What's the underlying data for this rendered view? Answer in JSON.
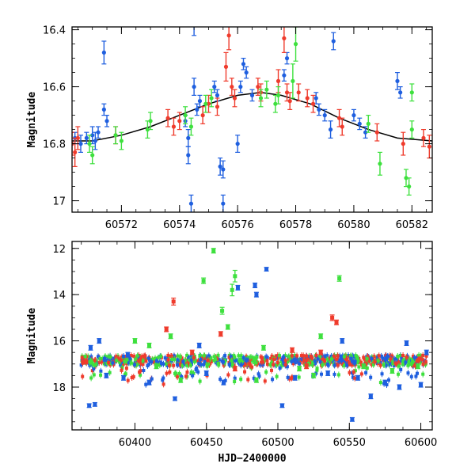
{
  "chart_data": [
    {
      "type": "scatter",
      "title": "",
      "xlabel": "",
      "ylabel": "Magnitude",
      "xlim": [
        60570.3,
        60582.7
      ],
      "ylim": [
        17.04,
        16.39
      ],
      "y_inverted": true,
      "grid": false,
      "legend": "none",
      "xticks": [
        60572,
        60574,
        60576,
        60578,
        60580,
        60582
      ],
      "yticks": [
        16.4,
        16.6,
        16.8,
        17
      ],
      "ytick_labels": [
        "16.4",
        "16.6",
        "16.8",
        "17"
      ],
      "model_curve": {
        "name": "",
        "color": "#000000",
        "x": [
          60570.3,
          60571.0,
          60572.0,
          60573.0,
          60574.0,
          60575.0,
          60576.0,
          60576.8,
          60577.5,
          60578.5,
          60579.5,
          60580.5,
          60581.5,
          60582.7
        ],
        "y": [
          16.79,
          16.79,
          16.77,
          16.74,
          16.7,
          16.66,
          16.63,
          16.62,
          16.63,
          16.66,
          16.71,
          16.75,
          16.78,
          16.79
        ]
      },
      "series": [
        {
          "name": "",
          "color": "#1f5fdf",
          "points": [
            {
              "x": 60570.4,
              "y": 16.78,
              "e": 0.02
            },
            {
              "x": 60570.6,
              "y": 16.8,
              "e": 0.03
            },
            {
              "x": 60570.8,
              "y": 16.78,
              "e": 0.02
            },
            {
              "x": 60571.0,
              "y": 16.77,
              "e": 0.03
            },
            {
              "x": 60571.1,
              "y": 16.79,
              "e": 0.03
            },
            {
              "x": 60571.2,
              "y": 16.76,
              "e": 0.02
            },
            {
              "x": 60571.4,
              "y": 16.68,
              "e": 0.02
            },
            {
              "x": 60571.4,
              "y": 16.48,
              "e": 0.04
            },
            {
              "x": 60571.5,
              "y": 16.72,
              "e": 0.02
            },
            {
              "x": 60574.2,
              "y": 16.72,
              "e": 0.02
            },
            {
              "x": 60574.3,
              "y": 16.78,
              "e": 0.03
            },
            {
              "x": 60574.3,
              "y": 16.84,
              "e": 0.03
            },
            {
              "x": 60574.4,
              "y": 17.01,
              "e": 0.03
            },
            {
              "x": 60574.5,
              "y": 16.38,
              "e": 0.04
            },
            {
              "x": 60574.5,
              "y": 16.6,
              "e": 0.03
            },
            {
              "x": 60574.6,
              "y": 16.68,
              "e": 0.02
            },
            {
              "x": 60574.7,
              "y": 16.65,
              "e": 0.02
            },
            {
              "x": 60575.2,
              "y": 16.6,
              "e": 0.02
            },
            {
              "x": 60575.3,
              "y": 16.63,
              "e": 0.02
            },
            {
              "x": 60575.4,
              "y": 16.88,
              "e": 0.03
            },
            {
              "x": 60575.5,
              "y": 16.89,
              "e": 0.03
            },
            {
              "x": 60575.5,
              "y": 17.01,
              "e": 0.03
            },
            {
              "x": 60576.0,
              "y": 16.8,
              "e": 0.03
            },
            {
              "x": 60576.1,
              "y": 16.6,
              "e": 0.02
            },
            {
              "x": 60576.2,
              "y": 16.52,
              "e": 0.02
            },
            {
              "x": 60576.3,
              "y": 16.55,
              "e": 0.02
            },
            {
              "x": 60576.5,
              "y": 16.63,
              "e": 0.02
            },
            {
              "x": 60577.6,
              "y": 16.56,
              "e": 0.02
            },
            {
              "x": 60577.7,
              "y": 16.5,
              "e": 0.02
            },
            {
              "x": 60578.7,
              "y": 16.64,
              "e": 0.02
            },
            {
              "x": 60578.8,
              "y": 16.68,
              "e": 0.02
            },
            {
              "x": 60579.0,
              "y": 16.7,
              "e": 0.02
            },
            {
              "x": 60579.2,
              "y": 16.75,
              "e": 0.03
            },
            {
              "x": 60579.3,
              "y": 16.44,
              "e": 0.03
            },
            {
              "x": 60580.0,
              "y": 16.7,
              "e": 0.02
            },
            {
              "x": 60580.2,
              "y": 16.73,
              "e": 0.02
            },
            {
              "x": 60580.4,
              "y": 16.76,
              "e": 0.02
            },
            {
              "x": 60581.5,
              "y": 16.58,
              "e": 0.03
            },
            {
              "x": 60581.6,
              "y": 16.62,
              "e": 0.02
            }
          ]
        },
        {
          "name": "",
          "color": "#ef3b2c",
          "points": [
            {
              "x": 60570.3,
              "y": 16.8,
              "e": 0.04
            },
            {
              "x": 60570.4,
              "y": 16.83,
              "e": 0.05
            },
            {
              "x": 60570.5,
              "y": 16.78,
              "e": 0.04
            },
            {
              "x": 60571.8,
              "y": 16.77,
              "e": 0.03
            },
            {
              "x": 60573.6,
              "y": 16.71,
              "e": 0.03
            },
            {
              "x": 60573.8,
              "y": 16.74,
              "e": 0.03
            },
            {
              "x": 60574.0,
              "y": 16.72,
              "e": 0.03
            },
            {
              "x": 60574.8,
              "y": 16.7,
              "e": 0.03
            },
            {
              "x": 60575.0,
              "y": 16.66,
              "e": 0.03
            },
            {
              "x": 60575.3,
              "y": 16.67,
              "e": 0.03
            },
            {
              "x": 60575.6,
              "y": 16.53,
              "e": 0.05
            },
            {
              "x": 60575.7,
              "y": 16.42,
              "e": 0.05
            },
            {
              "x": 60575.8,
              "y": 16.6,
              "e": 0.03
            },
            {
              "x": 60575.9,
              "y": 16.64,
              "e": 0.03
            },
            {
              "x": 60576.7,
              "y": 16.6,
              "e": 0.03
            },
            {
              "x": 60576.8,
              "y": 16.62,
              "e": 0.03
            },
            {
              "x": 60577.4,
              "y": 16.58,
              "e": 0.04
            },
            {
              "x": 60577.6,
              "y": 16.43,
              "e": 0.05
            },
            {
              "x": 60577.7,
              "y": 16.62,
              "e": 0.03
            },
            {
              "x": 60577.8,
              "y": 16.65,
              "e": 0.03
            },
            {
              "x": 60578.1,
              "y": 16.62,
              "e": 0.03
            },
            {
              "x": 60578.4,
              "y": 16.64,
              "e": 0.03
            },
            {
              "x": 60578.6,
              "y": 16.66,
              "e": 0.03
            },
            {
              "x": 60579.5,
              "y": 16.71,
              "e": 0.03
            },
            {
              "x": 60579.6,
              "y": 16.74,
              "e": 0.03
            },
            {
              "x": 60580.8,
              "y": 16.76,
              "e": 0.03
            },
            {
              "x": 60581.7,
              "y": 16.8,
              "e": 0.04
            },
            {
              "x": 60582.4,
              "y": 16.78,
              "e": 0.03
            },
            {
              "x": 60582.6,
              "y": 16.81,
              "e": 0.04
            }
          ]
        },
        {
          "name": "",
          "color": "#3ee03e",
          "points": [
            {
              "x": 60570.9,
              "y": 16.8,
              "e": 0.03
            },
            {
              "x": 60571.0,
              "y": 16.84,
              "e": 0.03
            },
            {
              "x": 60571.8,
              "y": 16.77,
              "e": 0.03
            },
            {
              "x": 60572.0,
              "y": 16.79,
              "e": 0.03
            },
            {
              "x": 60572.9,
              "y": 16.75,
              "e": 0.03
            },
            {
              "x": 60573.0,
              "y": 16.72,
              "e": 0.03
            },
            {
              "x": 60574.2,
              "y": 16.7,
              "e": 0.03
            },
            {
              "x": 60574.4,
              "y": 16.74,
              "e": 0.03
            },
            {
              "x": 60574.9,
              "y": 16.66,
              "e": 0.03
            },
            {
              "x": 60575.1,
              "y": 16.64,
              "e": 0.03
            },
            {
              "x": 60576.8,
              "y": 16.64,
              "e": 0.03
            },
            {
              "x": 60577.0,
              "y": 16.61,
              "e": 0.03
            },
            {
              "x": 60577.3,
              "y": 16.66,
              "e": 0.03
            },
            {
              "x": 60577.4,
              "y": 16.63,
              "e": 0.03
            },
            {
              "x": 60577.9,
              "y": 16.58,
              "e": 0.06
            },
            {
              "x": 60578.0,
              "y": 16.45,
              "e": 0.06
            },
            {
              "x": 60580.5,
              "y": 16.73,
              "e": 0.03
            },
            {
              "x": 60580.9,
              "y": 16.87,
              "e": 0.04
            },
            {
              "x": 60581.8,
              "y": 16.92,
              "e": 0.03
            },
            {
              "x": 60581.9,
              "y": 16.95,
              "e": 0.03
            },
            {
              "x": 60582.0,
              "y": 16.62,
              "e": 0.03
            },
            {
              "x": 60582.0,
              "y": 16.75,
              "e": 0.03
            }
          ]
        }
      ]
    },
    {
      "type": "scatter",
      "title": "",
      "xlabel": "HJD−2400000",
      "ylabel": "Magnitude",
      "xlim": [
        60356,
        60608
      ],
      "ylim": [
        19.85,
        11.7
      ],
      "y_inverted": true,
      "grid": false,
      "legend": "none",
      "xticks": [
        60400,
        60450,
        60500,
        60550,
        60600
      ],
      "yticks": [
        12,
        14,
        16,
        18
      ],
      "ytick_labels": [
        "12",
        "14",
        "16",
        "18"
      ],
      "series": [
        {
          "name": "",
          "color": "#1f5fdf",
          "points": [
            {
              "x": 60368,
              "y": 18.8,
              "e": 0.08
            },
            {
              "x": 60372,
              "y": 18.75,
              "e": 0.08
            },
            {
              "x": 60369,
              "y": 16.3,
              "e": 0.1
            },
            {
              "x": 60375,
              "y": 16.0,
              "e": 0.1
            },
            {
              "x": 60380,
              "y": 17.5,
              "e": 0.1
            },
            {
              "x": 60392,
              "y": 17.6,
              "e": 0.1
            },
            {
              "x": 60395,
              "y": 16.6,
              "e": 0.1
            },
            {
              "x": 60410,
              "y": 17.8,
              "e": 0.1
            },
            {
              "x": 60428,
              "y": 18.5,
              "e": 0.08
            },
            {
              "x": 60445,
              "y": 16.2,
              "e": 0.1
            },
            {
              "x": 60450,
              "y": 17.4,
              "e": 0.1
            },
            {
              "x": 60462,
              "y": 17.8,
              "e": 0.1
            },
            {
              "x": 60472,
              "y": 13.7,
              "e": 0.1
            },
            {
              "x": 60484,
              "y": 13.6,
              "e": 0.1
            },
            {
              "x": 60485,
              "y": 14.0,
              "e": 0.1
            },
            {
              "x": 60492,
              "y": 12.9,
              "e": 0.08
            },
            {
              "x": 60503,
              "y": 18.8,
              "e": 0.08
            },
            {
              "x": 60512,
              "y": 17.6,
              "e": 0.1
            },
            {
              "x": 60535,
              "y": 17.4,
              "e": 0.1
            },
            {
              "x": 60545,
              "y": 16.0,
              "e": 0.1
            },
            {
              "x": 60552,
              "y": 19.4,
              "e": 0.08
            },
            {
              "x": 60556,
              "y": 17.6,
              "e": 0.1
            },
            {
              "x": 60565,
              "y": 18.4,
              "e": 0.1
            },
            {
              "x": 60575,
              "y": 17.8,
              "e": 0.1
            },
            {
              "x": 60585,
              "y": 18.0,
              "e": 0.1
            },
            {
              "x": 60590,
              "y": 16.1,
              "e": 0.1
            },
            {
              "x": 60600,
              "y": 17.9,
              "e": 0.1
            },
            {
              "x": 60604,
              "y": 16.5,
              "e": 0.1
            }
          ]
        },
        {
          "name": "",
          "color": "#ef3b2c",
          "points": [
            {
              "x": 60427,
              "y": 14.3,
              "e": 0.15
            },
            {
              "x": 60422,
              "y": 15.5,
              "e": 0.1
            },
            {
              "x": 60460,
              "y": 15.7,
              "e": 0.1
            },
            {
              "x": 60538,
              "y": 15.0,
              "e": 0.12
            },
            {
              "x": 60541,
              "y": 15.2,
              "e": 0.1
            },
            {
              "x": 60440,
              "y": 16.5,
              "e": 0.1
            },
            {
              "x": 60470,
              "y": 17.2,
              "e": 0.1
            },
            {
              "x": 60510,
              "y": 16.4,
              "e": 0.1
            },
            {
              "x": 60520,
              "y": 17.1,
              "e": 0.1
            },
            {
              "x": 60530,
              "y": 16.5,
              "e": 0.1
            }
          ]
        },
        {
          "name": "",
          "color": "#3ee03e",
          "points": [
            {
              "x": 60455,
              "y": 12.1,
              "e": 0.1
            },
            {
              "x": 60448,
              "y": 13.4,
              "e": 0.12
            },
            {
              "x": 60470,
              "y": 13.2,
              "e": 0.25
            },
            {
              "x": 60468,
              "y": 13.8,
              "e": 0.25
            },
            {
              "x": 60461,
              "y": 14.7,
              "e": 0.15
            },
            {
              "x": 60465,
              "y": 15.4,
              "e": 0.1
            },
            {
              "x": 60543,
              "y": 13.3,
              "e": 0.12
            },
            {
              "x": 60400,
              "y": 16.0,
              "e": 0.1
            },
            {
              "x": 60410,
              "y": 16.2,
              "e": 0.1
            },
            {
              "x": 60415,
              "y": 17.1,
              "e": 0.1
            },
            {
              "x": 60425,
              "y": 15.8,
              "e": 0.1
            },
            {
              "x": 60432,
              "y": 17.7,
              "e": 0.1
            },
            {
              "x": 60485,
              "y": 17.7,
              "e": 0.1
            },
            {
              "x": 60490,
              "y": 16.3,
              "e": 0.1
            },
            {
              "x": 60515,
              "y": 17.2,
              "e": 0.1
            },
            {
              "x": 60525,
              "y": 17.5,
              "e": 0.1
            },
            {
              "x": 60530,
              "y": 15.8,
              "e": 0.1
            },
            {
              "x": 60560,
              "y": 17.1,
              "e": 0.1
            },
            {
              "x": 60580,
              "y": 17.3,
              "e": 0.1
            },
            {
              "x": 60598,
              "y": 17.1,
              "e": 0.1
            }
          ]
        }
      ]
    }
  ]
}
